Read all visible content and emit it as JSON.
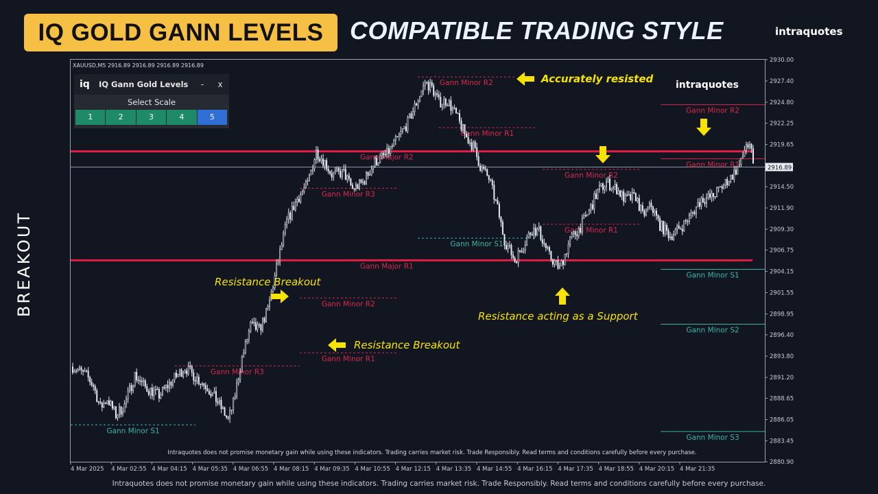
{
  "header": {
    "title_badge": "IQ GOLD GANN LEVELS",
    "subtitle": "COMPATIBLE TRADING STYLE",
    "brand": "intraquotes",
    "side_label": "BREAKOUT"
  },
  "panel": {
    "logo": "iq",
    "title": "IQ Gann Gold Levels",
    "minimize": "-",
    "close": "x",
    "scale_label": "Select Scale",
    "scales": [
      "1",
      "2",
      "3",
      "4",
      "5"
    ],
    "active_scale": "5"
  },
  "footer": {
    "disclaimer": "Intraquotes does not promise monetary gain while using these indicators. Trading carries market risk. Trade Responsibly. Read terms and conditions carefully before every purchase."
  },
  "colors": {
    "background": "#121620",
    "candle": "#e8ecf4",
    "major_line": "#e21d47",
    "resistance": "#d8284e",
    "support": "#3ab5a8",
    "annotation": "#f6e400",
    "price_tag": "#e8ecf4"
  },
  "chart_data": {
    "type": "candlestick",
    "symbol_header": "XAUUSD,M5  2916.89 2916.89 2916.89 2916.89",
    "chart_brand": "intraquotes",
    "in_chart_disclaimer": "Intraquotes does not promise monetary gain while using these indicators. Trading carries market risk. Trade Responsibly. Read terms and conditions carefully before every purchase.",
    "ylim": [
      2880.9,
      2930.0
    ],
    "y_ticks": [
      "2930.00",
      "2927.40",
      "2924.80",
      "2922.25",
      "2919.65",
      "2917.05",
      "2914.50",
      "2911.90",
      "2909.30",
      "2906.75",
      "2904.15",
      "2901.55",
      "2898.95",
      "2896.40",
      "2893.80",
      "2891.20",
      "2888.65",
      "2886.05",
      "2883.45",
      "2880.90"
    ],
    "x_ticks": [
      "4 Mar 2025",
      "4 Mar 02:55",
      "4 Mar 04:15",
      "4 Mar 05:35",
      "4 Mar 06:55",
      "4 Mar 08:15",
      "4 Mar 09:35",
      "4 Mar 10:55",
      "4 Mar 12:15",
      "4 Mar 13:35",
      "4 Mar 14:55",
      "4 Mar 16:15",
      "4 Mar 17:35",
      "4 Mar 18:55",
      "4 Mar 20:15",
      "4 Mar 21:35"
    ],
    "current_price": 2916.89,
    "current_price_label": "2916.89",
    "close_path": [
      [
        0,
        2892.5
      ],
      [
        8,
        2891.4
      ],
      [
        12,
        2890.2
      ],
      [
        16,
        2887.5
      ],
      [
        20,
        2888.6
      ],
      [
        25,
        2886.6
      ],
      [
        30,
        2887.8
      ],
      [
        36,
        2891.5
      ],
      [
        42,
        2890.0
      ],
      [
        50,
        2889.0
      ],
      [
        58,
        2890.9
      ],
      [
        65,
        2892.4
      ],
      [
        72,
        2891.1
      ],
      [
        78,
        2890.0
      ],
      [
        84,
        2888.2
      ],
      [
        90,
        2886.0
      ],
      [
        93,
        2888.0
      ],
      [
        98,
        2893.5
      ],
      [
        103,
        2897.5
      ],
      [
        108,
        2897.0
      ],
      [
        113,
        2899.5
      ],
      [
        118,
        2904.5
      ],
      [
        124,
        2910.2
      ],
      [
        130,
        2913.0
      ],
      [
        136,
        2914.8
      ],
      [
        141,
        2918.8
      ],
      [
        146,
        2917.5
      ],
      [
        150,
        2916.0
      ],
      [
        157,
        2916.2
      ],
      [
        162,
        2914.2
      ],
      [
        168,
        2915.0
      ],
      [
        175,
        2917.5
      ],
      [
        182,
        2918.5
      ],
      [
        188,
        2920.3
      ],
      [
        194,
        2922.3
      ],
      [
        200,
        2925.2
      ],
      [
        204,
        2927.2
      ],
      [
        208,
        2926.6
      ],
      [
        212,
        2924.8
      ],
      [
        217,
        2925.0
      ],
      [
        222,
        2923.2
      ],
      [
        228,
        2920.5
      ],
      [
        232,
        2919.4
      ],
      [
        236,
        2917.0
      ],
      [
        241,
        2915.5
      ],
      [
        246,
        2911.8
      ],
      [
        250,
        2908.0
      ],
      [
        256,
        2905.5
      ],
      [
        262,
        2907.8
      ],
      [
        266,
        2909.3
      ],
      [
        270,
        2909.0
      ],
      [
        276,
        2906.0
      ],
      [
        282,
        2904.5
      ],
      [
        288,
        2908.0
      ],
      [
        294,
        2909.6
      ],
      [
        299,
        2911.5
      ],
      [
        304,
        2913.9
      ],
      [
        309,
        2915.0
      ],
      [
        315,
        2914.2
      ],
      [
        320,
        2912.9
      ],
      [
        326,
        2913.3
      ],
      [
        330,
        2911.0
      ],
      [
        335,
        2912.2
      ],
      [
        340,
        2909.8
      ],
      [
        346,
        2908.5
      ],
      [
        352,
        2909.5
      ],
      [
        358,
        2911.0
      ],
      [
        364,
        2913.0
      ],
      [
        370,
        2913.2
      ],
      [
        376,
        2914.5
      ],
      [
        382,
        2915.9
      ],
      [
        387,
        2917.4
      ],
      [
        390,
        2919.8
      ],
      [
        393,
        2918.6
      ],
      [
        394,
        2916.9
      ]
    ],
    "levels": [
      {
        "name": "Gann Major R2",
        "price": 2918.8,
        "kind": "major",
        "span": [
          0,
          1
        ]
      },
      {
        "name": "Gann Major R1",
        "price": 2905.5,
        "kind": "major",
        "span": [
          0,
          1
        ]
      },
      {
        "name": "Gann Minor R2",
        "price": 2927.9,
        "kind": "minor-r",
        "span": [
          0.5,
          0.64
        ]
      },
      {
        "name": "Gann Minor R1",
        "price": 2921.7,
        "kind": "minor-r",
        "span": [
          0.53,
          0.67
        ]
      },
      {
        "name": "Gann Minor R3",
        "price": 2914.3,
        "kind": "minor-r",
        "span": [
          0.33,
          0.47
        ]
      },
      {
        "name": "Gann Minor R2",
        "price": 2900.9,
        "kind": "minor-r",
        "span": [
          0.33,
          0.47
        ]
      },
      {
        "name": "Gann Minor R1",
        "price": 2894.2,
        "kind": "minor-r",
        "span": [
          0.33,
          0.47
        ]
      },
      {
        "name": "Gann Minor R3",
        "price": 2892.6,
        "kind": "minor-r",
        "span": [
          0.15,
          0.33
        ]
      },
      {
        "name": "Gann Minor S1",
        "price": 2885.4,
        "kind": "minor-s",
        "span": [
          0,
          0.18
        ]
      },
      {
        "name": "Gann Minor R2",
        "price": 2916.6,
        "kind": "minor-r",
        "span": [
          0.68,
          0.82
        ]
      },
      {
        "name": "Gann Minor R1",
        "price": 2909.9,
        "kind": "minor-r",
        "span": [
          0.68,
          0.82
        ]
      },
      {
        "name": "Gann Minor S1",
        "price": 2908.2,
        "kind": "minor-s",
        "span": [
          0.5,
          0.67
        ]
      },
      {
        "name": "Gann Minor R2",
        "price": 2924.5,
        "kind": "minor-r",
        "span": [
          0.85,
          1
        ]
      },
      {
        "name": "Gann Minor R1",
        "price": 2917.9,
        "kind": "minor-r",
        "span": [
          0.85,
          1
        ]
      },
      {
        "name": "Gann Minor S1",
        "price": 2904.4,
        "kind": "minor-s",
        "span": [
          0.85,
          1
        ]
      },
      {
        "name": "Gann Minor S2",
        "price": 2897.7,
        "kind": "minor-s",
        "span": [
          0.85,
          1
        ]
      },
      {
        "name": "Gann Minor S3",
        "price": 2884.6,
        "kind": "minor-s",
        "span": [
          0.85,
          1
        ]
      }
    ],
    "annotations": [
      {
        "text": "Accurately resisted",
        "arrow": "left"
      },
      {
        "text": "Resistance Breakout",
        "arrow": "right"
      },
      {
        "text": "Resistance Breakout",
        "arrow": "left"
      },
      {
        "text": "Resistance acting as a Support",
        "arrow": "up"
      },
      {
        "text": "",
        "arrow": "down"
      },
      {
        "text": "",
        "arrow": "down"
      }
    ]
  }
}
